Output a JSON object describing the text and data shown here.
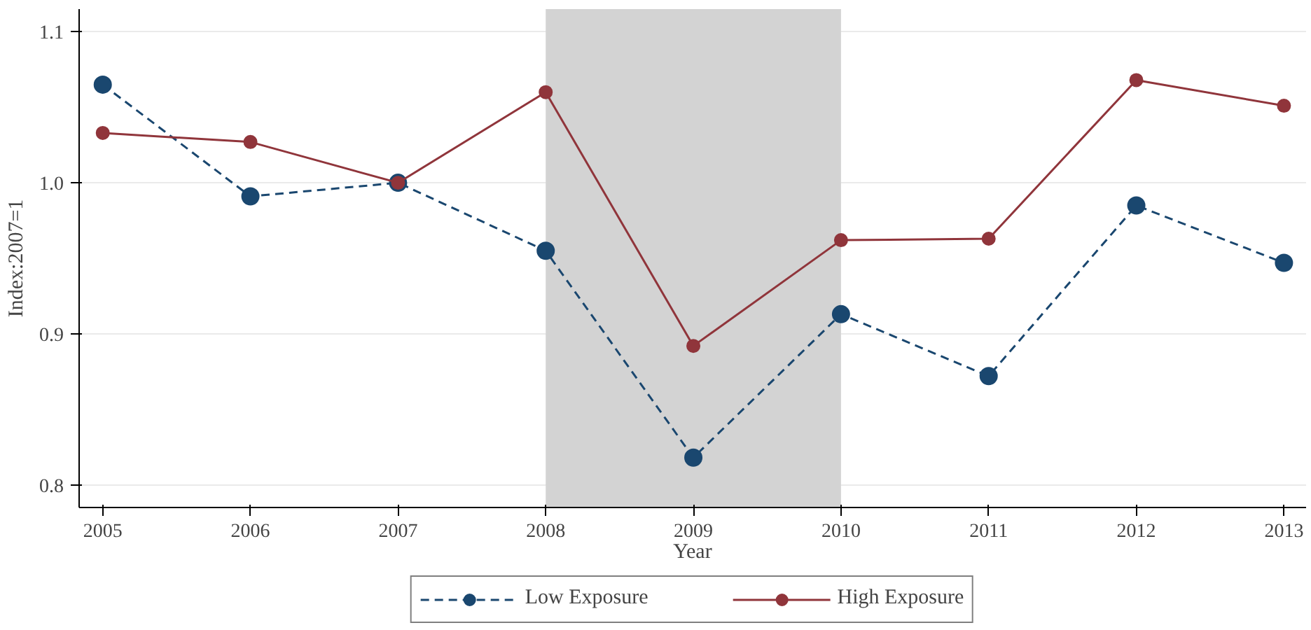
{
  "chart_data": {
    "type": "line",
    "xlabel": "Year",
    "ylabel": "Index:2007=1",
    "x": [
      2005,
      2006,
      2007,
      2008,
      2009,
      2010,
      2011,
      2012,
      2013
    ],
    "series": [
      {
        "name": "Low Exposure",
        "color": "#1a476f",
        "line_style": "dashed",
        "marker": "circle",
        "values": [
          1.065,
          0.991,
          1.0,
          0.955,
          0.818,
          0.913,
          0.872,
          0.985,
          0.947
        ]
      },
      {
        "name": "High Exposure",
        "color": "#90353b",
        "line_style": "solid",
        "marker": "circle",
        "values": [
          1.033,
          1.027,
          1.0,
          1.06,
          0.892,
          0.962,
          0.963,
          1.068,
          1.051
        ]
      }
    ],
    "xlim": [
      2004.84,
      2013.15
    ],
    "ylim": [
      0.785,
      1.115
    ],
    "xticks": [
      2005,
      2006,
      2007,
      2008,
      2009,
      2010,
      2011,
      2012,
      2013
    ],
    "yticks": [
      {
        "value": 0.8,
        "label": "0.8"
      },
      {
        "value": 0.9,
        "label": "0.9"
      },
      {
        "value": 1.0,
        "label": "1.0"
      },
      {
        "value": 1.1,
        "label": "1.1"
      }
    ],
    "bands": [
      {
        "axis": "x",
        "from": 2008,
        "to": 2010,
        "color": "#d3d3d3"
      }
    ],
    "grid": "y",
    "legend": "bottom"
  }
}
